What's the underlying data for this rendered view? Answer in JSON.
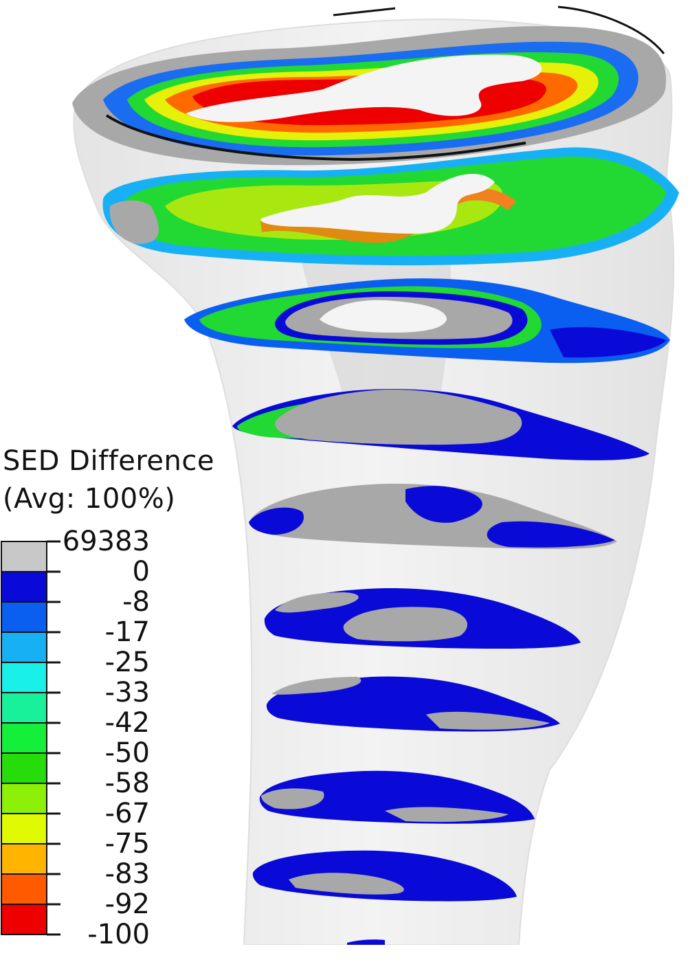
{
  "legend": {
    "title": "SED Difference",
    "subtitle": "(Avg: 100%)",
    "labels": [
      "69383",
      "0",
      "-8",
      "-17",
      "-25",
      "-33",
      "-42",
      "-50",
      "-58",
      "-67",
      "-75",
      "-83",
      "-92",
      "-100"
    ],
    "band_colors": [
      "#c8c8c8",
      "#0a0ad8",
      "#0a5ff0",
      "#18b0f4",
      "#18f0e8",
      "#18f09a",
      "#14f03a",
      "#26dc0a",
      "#8cf008",
      "#e0fa04",
      "#ffb400",
      "#ff5a00",
      "#ee0000"
    ]
  },
  "colors": {
    "bone_shell": "#eeeeee",
    "bone_shell_edge": "#dcdcdc",
    "slice_gray": "#a8a8a8",
    "canal_white": "#f4f4f4",
    "outline": "#111111"
  }
}
